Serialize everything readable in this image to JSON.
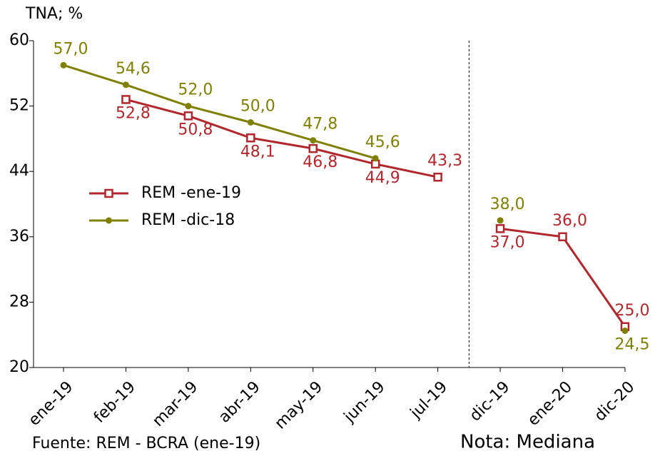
{
  "chart_data": {
    "type": "line",
    "y_label": "TNA; %",
    "categories": [
      "ene-19",
      "feb-19",
      "mar-19",
      "abr-19",
      "may-19",
      "jun-19",
      "jul-19",
      "dic-19",
      "ene-20",
      "dic-20"
    ],
    "divider_after": "jul-19",
    "series": [
      {
        "name": "REM -ene-19",
        "color": "#b0272d",
        "marker": "square-open",
        "values": [
          null,
          52.8,
          50.8,
          48.1,
          46.8,
          44.9,
          43.3,
          37.0,
          36.0,
          25.0
        ],
        "value_labels": [
          null,
          "52,8",
          "50,8",
          "48,1",
          "46,8",
          "44,9",
          "43,3",
          "37,0",
          "36,0",
          "25,0"
        ]
      },
      {
        "name": "REM -dic-18",
        "color": "#808000",
        "marker": "circle",
        "values": [
          57.0,
          54.6,
          52.0,
          50.0,
          47.8,
          45.6,
          null,
          38.0,
          null,
          24.5
        ],
        "value_labels": [
          "57,0",
          "54,6",
          "52,0",
          "50,0",
          "47,8",
          "45,6",
          null,
          "38,0",
          null,
          "24,5"
        ]
      }
    ],
    "ylim": [
      20,
      60
    ],
    "yticks": [
      20,
      28,
      36,
      44,
      52,
      60
    ],
    "source": "Fuente: REM - BCRA (ene-19)",
    "note": "Nota: Mediana"
  }
}
